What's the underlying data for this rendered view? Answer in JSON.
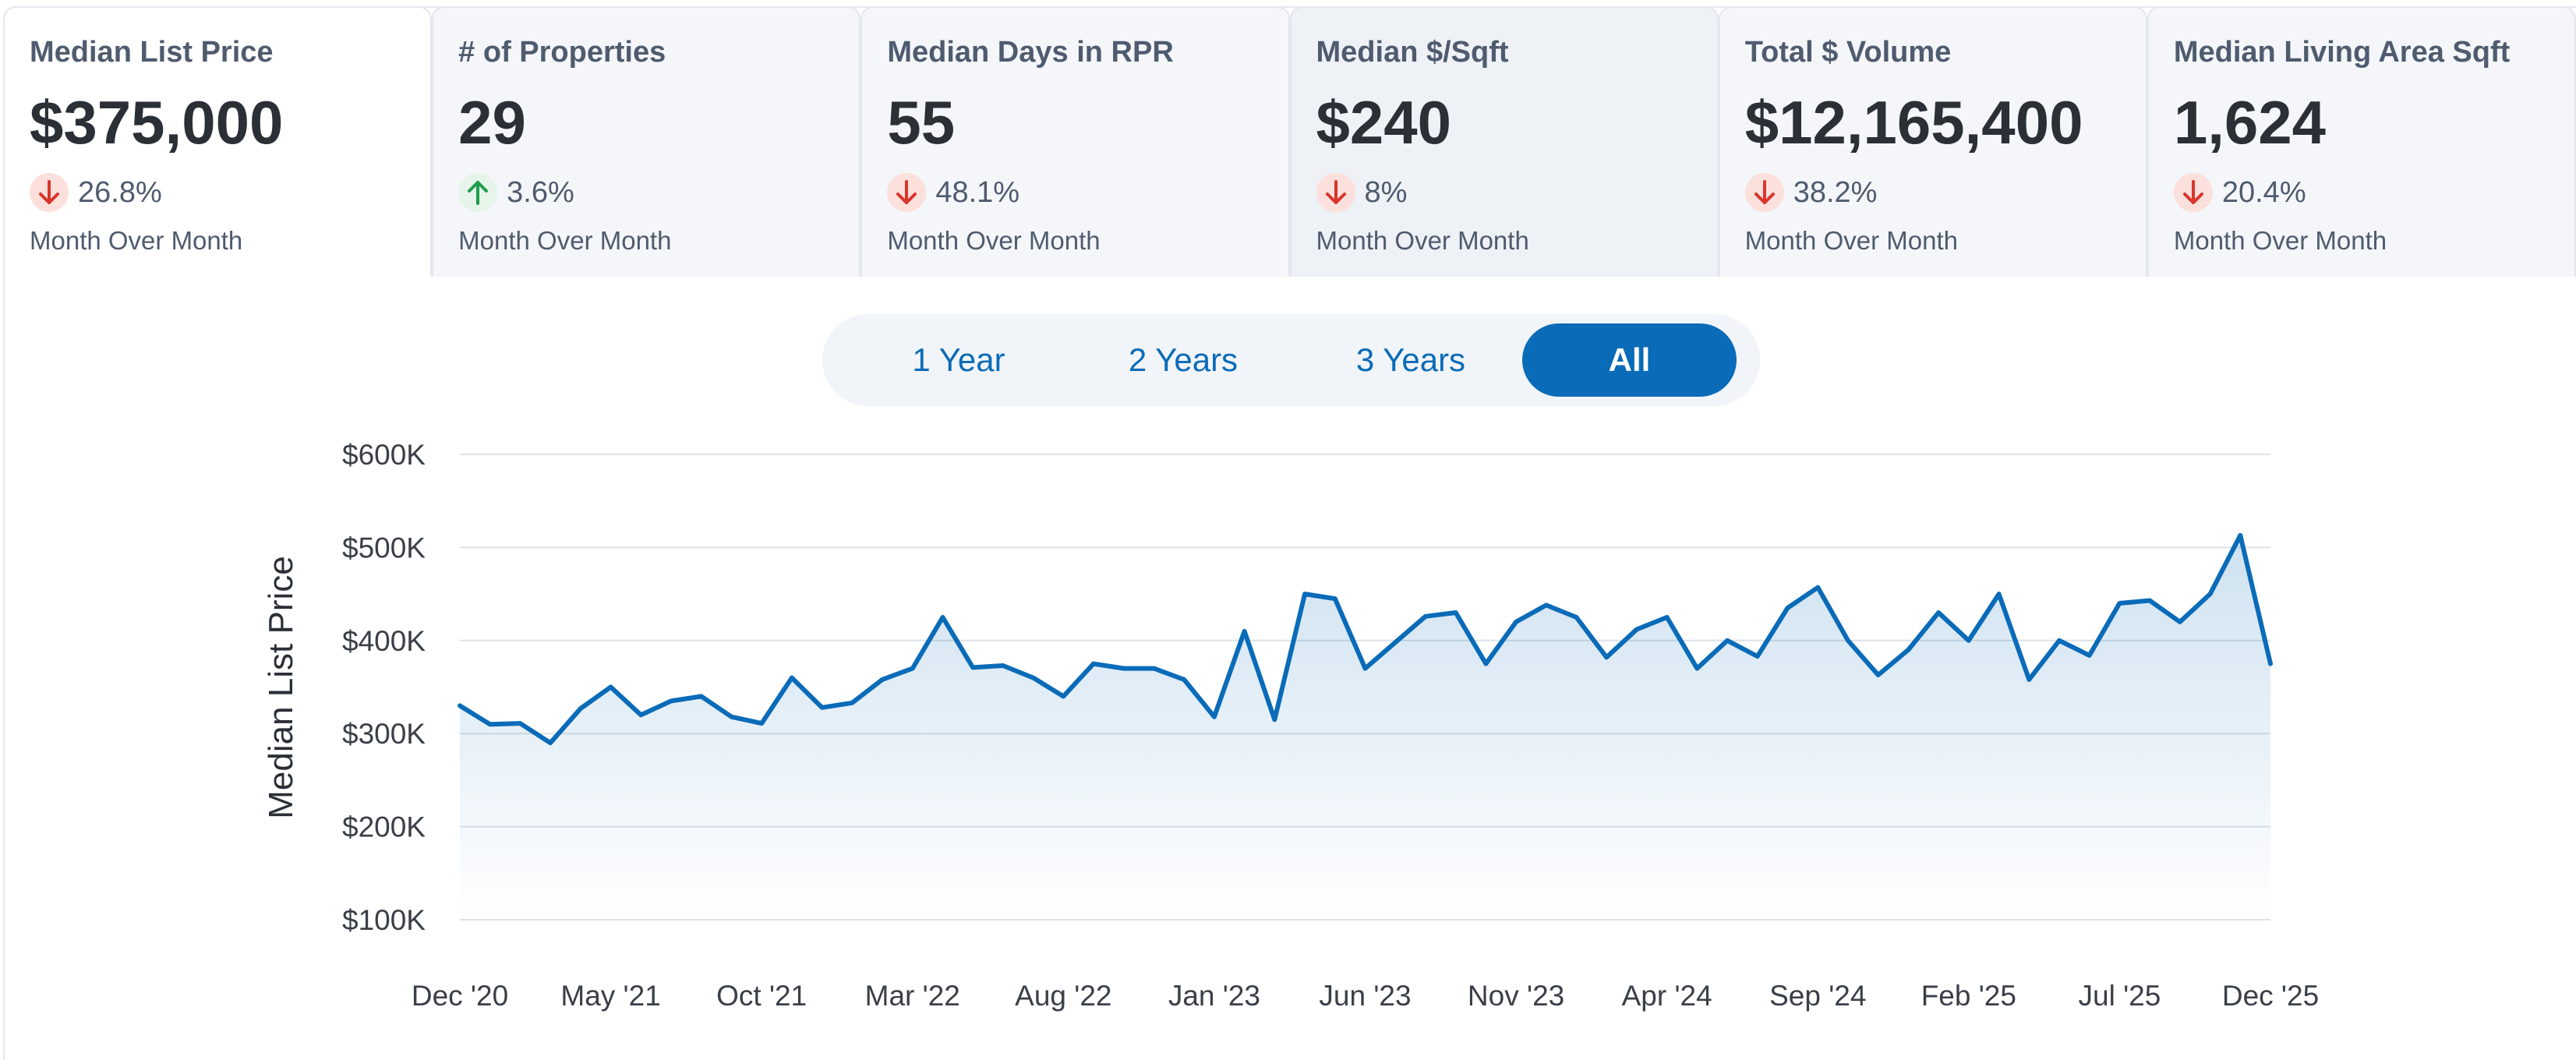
{
  "metrics": [
    {
      "title": "Median List Price",
      "value": "$375,000",
      "direction": "down",
      "change": "26.8%",
      "period": "Month Over Month"
    },
    {
      "title": "# of Properties",
      "value": "29",
      "direction": "up",
      "change": "3.6%",
      "period": "Month Over Month"
    },
    {
      "title": "Median Days in RPR",
      "value": "55",
      "direction": "down",
      "change": "48.1%",
      "period": "Month Over Month"
    },
    {
      "title": "Median $/Sqft",
      "value": "$240",
      "direction": "down",
      "change": "8%",
      "period": "Month Over Month"
    },
    {
      "title": "Total $ Volume",
      "value": "$12,165,400",
      "direction": "down",
      "change": "38.2%",
      "period": "Month Over Month"
    },
    {
      "title": "Median Living Area Sqft",
      "value": "1,624",
      "direction": "down",
      "change": "20.4%",
      "period": "Month Over Month"
    }
  ],
  "range_options": [
    "1 Year",
    "2 Years",
    "3 Years",
    "All"
  ],
  "selected_range": "All",
  "colors": {
    "accent": "#0a6bb8",
    "down_icon": "#d9352c",
    "down_bg": "#fbe0dc",
    "up_icon": "#1e9e4a",
    "up_bg": "#e6f4ea"
  },
  "chart_data": {
    "type": "area",
    "ylabel": "Median List Price",
    "ylim": [
      100000,
      600000
    ],
    "y_ticks": [
      {
        "value": 100000,
        "label": "$100K"
      },
      {
        "value": 200000,
        "label": "$200K"
      },
      {
        "value": 300000,
        "label": "$300K"
      },
      {
        "value": 400000,
        "label": "$400K"
      },
      {
        "value": 500000,
        "label": "$500K"
      },
      {
        "value": 600000,
        "label": "$600K"
      }
    ],
    "x_ticks": [
      {
        "index": 0,
        "label": "Dec '20"
      },
      {
        "index": 5,
        "label": "May '21"
      },
      {
        "index": 10,
        "label": "Oct '21"
      },
      {
        "index": 15,
        "label": "Mar '22"
      },
      {
        "index": 20,
        "label": "Aug '22"
      },
      {
        "index": 25,
        "label": "Jan '23"
      },
      {
        "index": 30,
        "label": "Jun '23"
      },
      {
        "index": 35,
        "label": "Nov '23"
      },
      {
        "index": 40,
        "label": "Apr '24"
      },
      {
        "index": 45,
        "label": "Sep '24"
      },
      {
        "index": 50,
        "label": "Feb '25"
      },
      {
        "index": 55,
        "label": "Jul '25"
      },
      {
        "index": 60,
        "label": "Dec '25"
      }
    ],
    "grid": true,
    "series": [
      {
        "values": [
          330000,
          310000,
          311000,
          290000,
          327000,
          350000,
          320000,
          335000,
          340000,
          318000,
          311000,
          360000,
          328000,
          333000,
          358000,
          370000,
          425000,
          371000,
          373000,
          360000,
          340000,
          375000,
          370000,
          370000,
          358000,
          318000,
          410000,
          315000,
          450000,
          445000,
          370000,
          398000,
          426000,
          430000,
          375000,
          420000,
          438000,
          425000,
          382000,
          412000,
          425000,
          370000,
          400000,
          383000,
          435000,
          457000,
          400000,
          363000,
          390000,
          430000,
          400000,
          450000,
          358000,
          400000,
          384000,
          440000,
          443000,
          420000,
          450000,
          513000,
          375000
        ]
      }
    ]
  }
}
